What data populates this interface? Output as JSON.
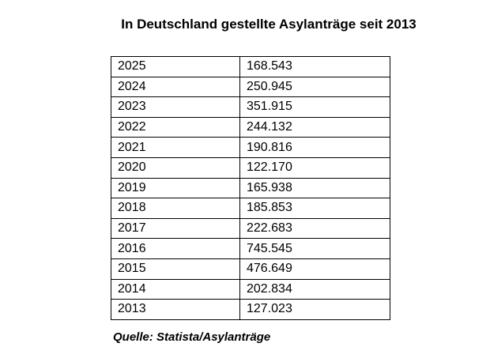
{
  "header": {
    "title": "In Deutschland gestellte Asylanträge seit 2013"
  },
  "table": {
    "rows": [
      [
        "2025",
        "168.543"
      ],
      [
        "2024",
        "250.945"
      ],
      [
        "2023",
        "351.915"
      ],
      [
        "2022",
        "244.132"
      ],
      [
        "2021",
        "190.816"
      ],
      [
        "2020",
        "122.170"
      ],
      [
        "2019",
        "165.938"
      ],
      [
        "2018",
        "185.853"
      ],
      [
        "2017",
        "222.683"
      ],
      [
        "2016",
        "745.545"
      ],
      [
        "2015",
        "476.649"
      ],
      [
        "2014",
        "202.834"
      ],
      [
        "2013",
        "127.023"
      ]
    ]
  },
  "footer": {
    "source": "Quelle: Statista/Asylanträge"
  }
}
